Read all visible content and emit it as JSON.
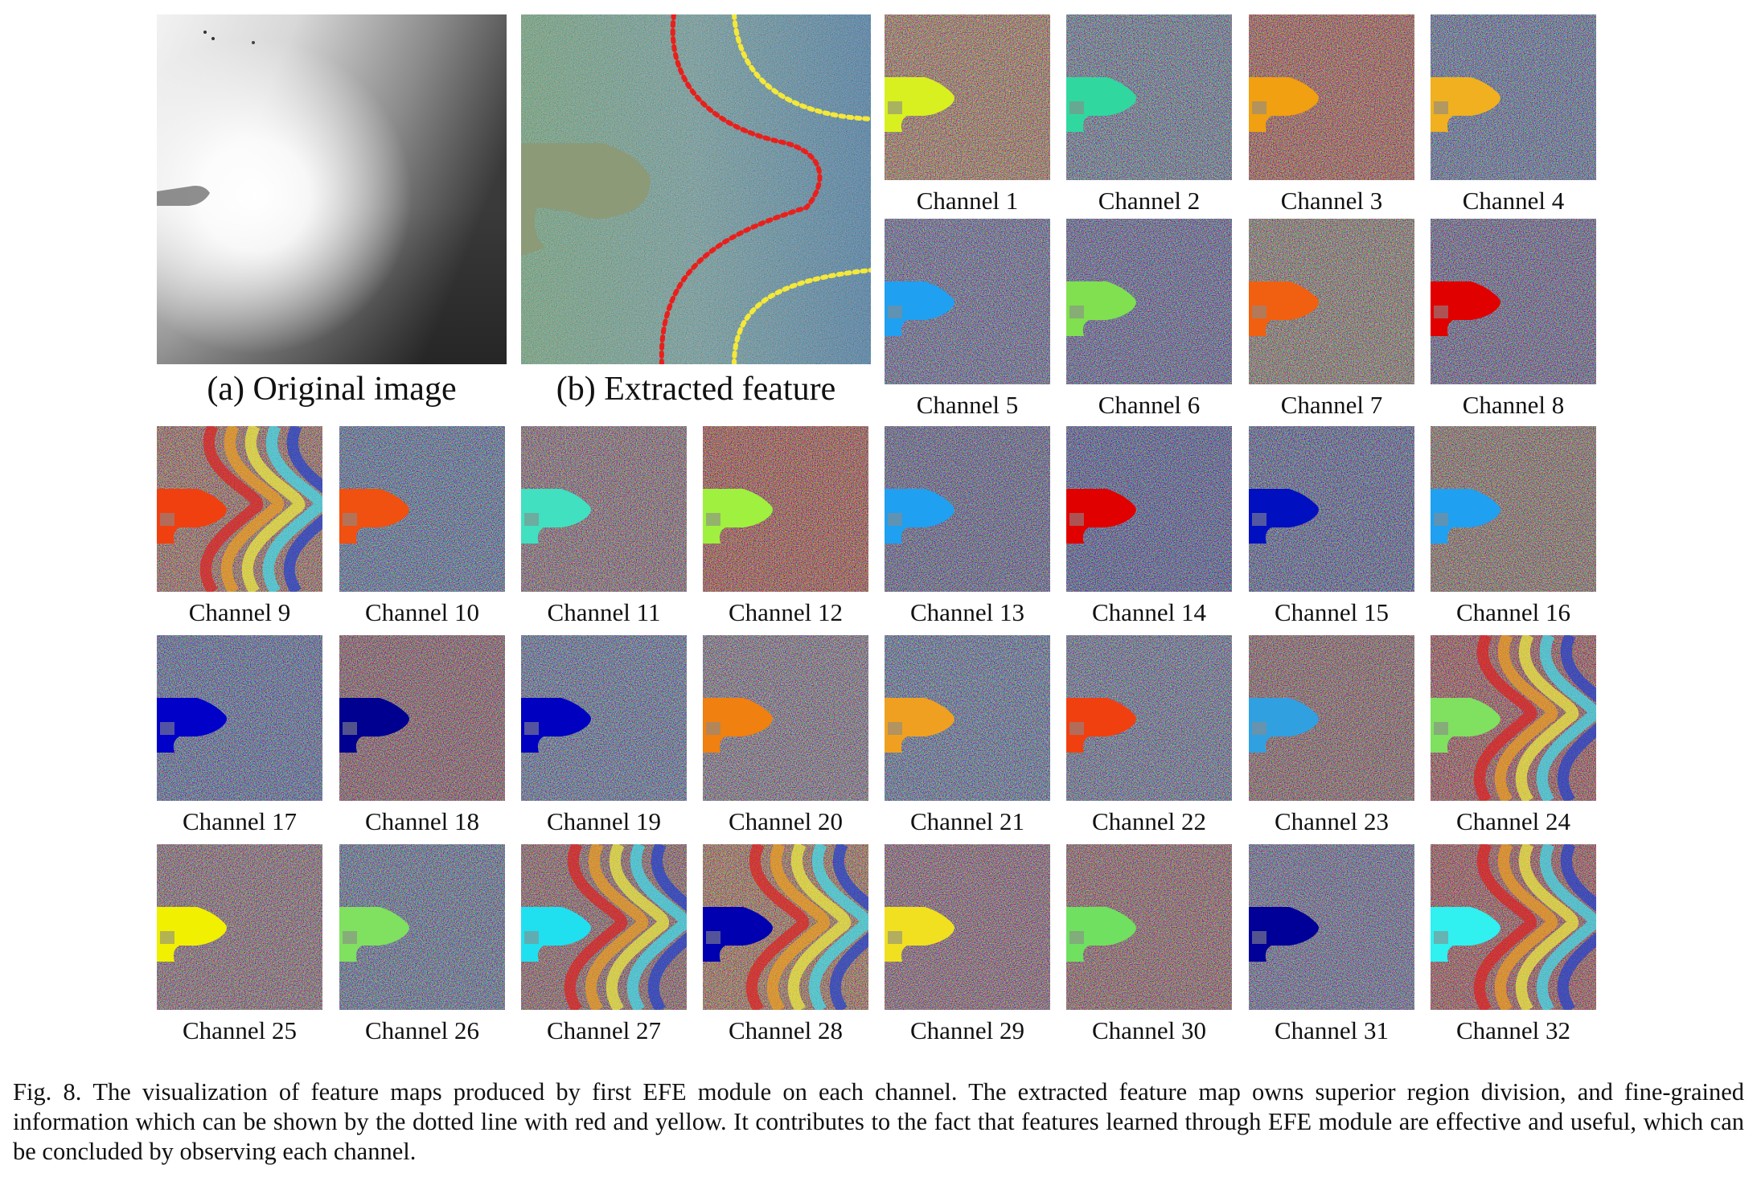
{
  "figure": {
    "panel_a_caption": "(a) Original image",
    "panel_b_caption": "(b) Extracted feature",
    "channels": [
      "Channel 1",
      "Channel 2",
      "Channel 3",
      "Channel 4",
      "Channel 5",
      "Channel 6",
      "Channel 7",
      "Channel 8",
      "Channel 9",
      "Channel 10",
      "Channel 11",
      "Channel 12",
      "Channel 13",
      "Channel 14",
      "Channel 15",
      "Channel 16",
      "Channel 17",
      "Channel 18",
      "Channel 19",
      "Channel 20",
      "Channel 21",
      "Channel 22",
      "Channel 23",
      "Channel 24",
      "Channel 25",
      "Channel 26",
      "Channel 27",
      "Channel 28",
      "Channel 29",
      "Channel 30",
      "Channel 31",
      "Channel 32"
    ],
    "channel_styles": [
      {
        "blob": "#d8f020",
        "tone": "#e0a050",
        "bands": false
      },
      {
        "blob": "#30d8a0",
        "tone": "#60a0c0",
        "bands": false
      },
      {
        "blob": "#f0a010",
        "tone": "#e06030",
        "bands": false
      },
      {
        "blob": "#f0b020",
        "tone": "#5090d0",
        "bands": false
      },
      {
        "blob": "#20a0f0",
        "tone": "#6080c0",
        "bands": false
      },
      {
        "blob": "#80e050",
        "tone": "#5070c0",
        "bands": false
      },
      {
        "blob": "#f06010",
        "tone": "#a0a070",
        "bands": false
      },
      {
        "blob": "#e00000",
        "tone": "#6070b0",
        "bands": false
      },
      {
        "blob": "#f04010",
        "tone": "#d08050",
        "bands": true
      },
      {
        "blob": "#f05010",
        "tone": "#4090d0",
        "bands": false
      },
      {
        "blob": "#40e0c0",
        "tone": "#a08080",
        "bands": false
      },
      {
        "blob": "#a0f040",
        "tone": "#e05020",
        "bands": false
      },
      {
        "blob": "#20a0f0",
        "tone": "#5070b0",
        "bands": false
      },
      {
        "blob": "#e00000",
        "tone": "#3060c0",
        "bands": false
      },
      {
        "blob": "#0010c0",
        "tone": "#4070c0",
        "bands": false
      },
      {
        "blob": "#20a0f0",
        "tone": "#a09060",
        "bands": false
      },
      {
        "blob": "#0000c8",
        "tone": "#4080d0",
        "bands": false
      },
      {
        "blob": "#000090",
        "tone": "#a06060",
        "bands": false
      },
      {
        "blob": "#0000c0",
        "tone": "#5090d0",
        "bands": false
      },
      {
        "blob": "#f08010",
        "tone": "#9090a0",
        "bands": false
      },
      {
        "blob": "#f0a020",
        "tone": "#5090d0",
        "bands": false
      },
      {
        "blob": "#f04010",
        "tone": "#6090c0",
        "bands": false
      },
      {
        "blob": "#30a0e0",
        "tone": "#a07060",
        "bands": false
      },
      {
        "blob": "#80e060",
        "tone": "#d05040",
        "bands": true
      },
      {
        "blob": "#f0f000",
        "tone": "#a08080",
        "bands": false
      },
      {
        "blob": "#80e060",
        "tone": "#5090c0",
        "bands": false
      },
      {
        "blob": "#20e0f0",
        "tone": "#b07060",
        "bands": true
      },
      {
        "blob": "#0000b0",
        "tone": "#e09040",
        "bands": true
      },
      {
        "blob": "#f0e020",
        "tone": "#a07080",
        "bands": false
      },
      {
        "blob": "#70e060",
        "tone": "#b07060",
        "bands": false
      },
      {
        "blob": "#000098",
        "tone": "#6080c0",
        "bands": false
      },
      {
        "blob": "#30f0f0",
        "tone": "#d05040",
        "bands": true
      }
    ],
    "caption_label": "Fig. 8.",
    "caption_text": "The visualization of feature maps produced by first EFE module on each channel. The extracted feature map owns superior region division, and fine-grained information which can be shown by the dotted line with red and yellow. It contributes to the fact that features learned through EFE module are effective and useful, which can be concluded by observing each channel.",
    "colors": {
      "red_dotted_line": "#e8201c",
      "yellow_dotted_line": "#f4e83a"
    }
  }
}
